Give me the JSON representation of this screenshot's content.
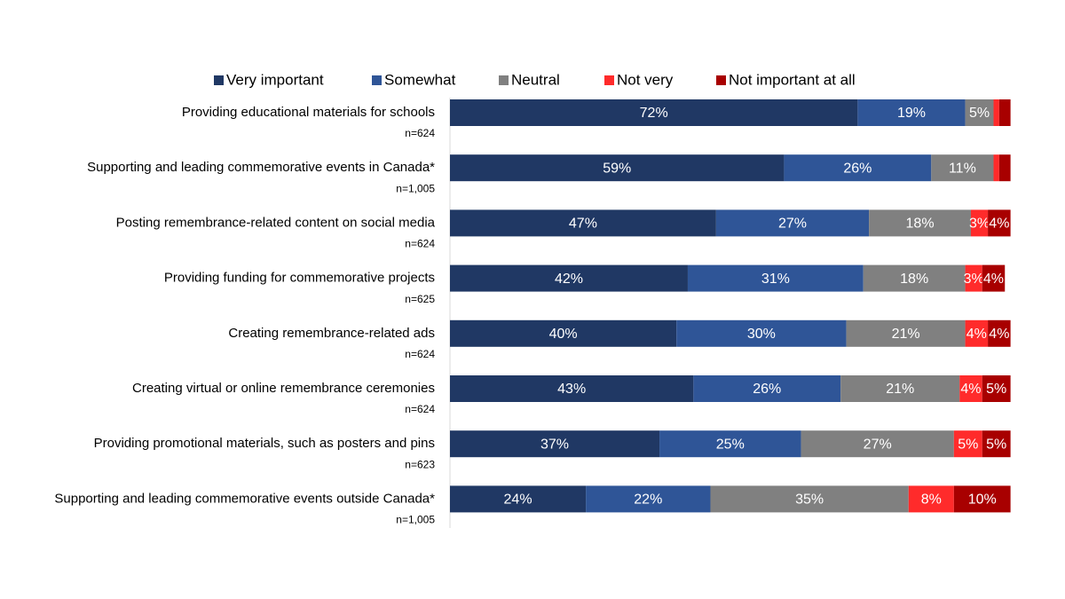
{
  "chart_data": {
    "type": "stacked-bar-horizontal",
    "categories": [
      "Providing educational materials for schools",
      "Supporting and leading commemorative events in Canada*",
      "Posting remembrance-related content on social media",
      "Providing funding for commemorative projects",
      "Creating remembrance-related ads",
      "Creating virtual or online remembrance ceremonies",
      "Providing promotional materials, such as posters and pins",
      "Supporting and leading commemorative events outside Canada*"
    ],
    "sample_sizes": [
      "n=624",
      "n=1,005",
      "n=624",
      "n=625",
      "n=624",
      "n=624",
      "n=623",
      "n=1,005"
    ],
    "series": [
      {
        "name": "Very important",
        "color": "#203864",
        "values": [
          72,
          59,
          47,
          42,
          40,
          43,
          37,
          24
        ],
        "value_labels": [
          "72%",
          "59%",
          "47%",
          "42%",
          "40%",
          "43%",
          "37%",
          "24%"
        ]
      },
      {
        "name": "Somewhat",
        "color": "#2f5597",
        "values": [
          19,
          26,
          27,
          31,
          30,
          26,
          25,
          22
        ],
        "value_labels": [
          "19%",
          "26%",
          "27%",
          "31%",
          "30%",
          "26%",
          "25%",
          "22%"
        ]
      },
      {
        "name": "Neutral",
        "color": "#808080",
        "values": [
          5,
          11,
          18,
          18,
          21,
          21,
          27,
          35
        ],
        "value_labels": [
          "5%",
          "11%",
          "18%",
          "18%",
          "21%",
          "21%",
          "27%",
          "35%"
        ]
      },
      {
        "name": "Not very",
        "color": "#ff2b2b",
        "values": [
          1,
          1,
          3,
          3,
          4,
          4,
          5,
          8
        ],
        "value_labels": [
          null,
          null,
          "3%",
          "3%",
          "4%",
          "4%",
          "5%",
          "8%"
        ]
      },
      {
        "name": "Not important at all",
        "color": "#a80000",
        "values": [
          2,
          2,
          4,
          4,
          4,
          5,
          5,
          10
        ],
        "value_labels": [
          null,
          null,
          "4%",
          "4%",
          "4%",
          "5%",
          "5%",
          "10%"
        ]
      }
    ],
    "legend": "top"
  }
}
